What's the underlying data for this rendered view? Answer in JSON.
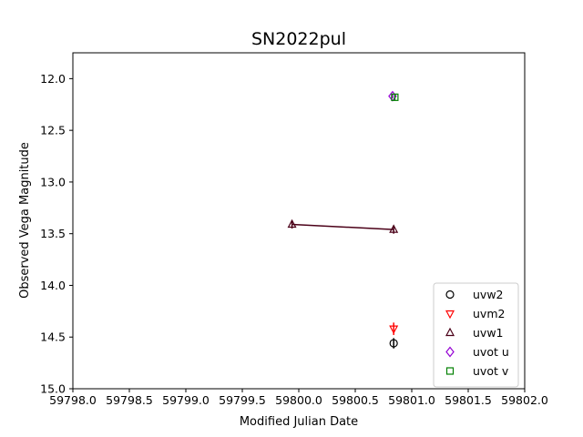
{
  "chart_data": {
    "type": "scatter",
    "title": "SN2022pul",
    "xlabel": "Modified Julian Date",
    "ylabel": "Observed Vega Magnitude",
    "xlim": [
      59798.0,
      59802.0
    ],
    "ylim": [
      15.0,
      11.75
    ],
    "y_inverted": true,
    "xticks": [
      59798.0,
      59798.5,
      59799.0,
      59799.5,
      59800.0,
      59800.5,
      59801.0,
      59801.5,
      59802.0
    ],
    "xtick_labels": [
      "59798.0",
      "59798.5",
      "59799.0",
      "59799.5",
      "59800.0",
      "59800.5",
      "59801.0",
      "59801.5",
      "59802.0"
    ],
    "yticks": [
      12.0,
      12.5,
      13.0,
      13.5,
      14.0,
      14.5,
      15.0
    ],
    "ytick_labels": [
      "12.0",
      "12.5",
      "13.0",
      "13.5",
      "14.0",
      "14.5",
      "15.0"
    ],
    "grid": false,
    "legend_position": "lower-right",
    "series": [
      {
        "name": "uvw2",
        "marker": "circle",
        "color": "#000000",
        "connect": false,
        "points": [
          {
            "x": 59800.84,
            "y": 14.56,
            "err": 0.05
          }
        ]
      },
      {
        "name": "uvm2",
        "marker": "triangle-down",
        "color": "#ff0000",
        "connect": false,
        "points": [
          {
            "x": 59800.84,
            "y": 14.42,
            "err": 0.06
          }
        ]
      },
      {
        "name": "uvw1",
        "marker": "triangle-up",
        "color": "#4b0018",
        "connect": true,
        "points": [
          {
            "x": 59799.94,
            "y": 13.41,
            "err": 0.04
          },
          {
            "x": 59800.84,
            "y": 13.46,
            "err": 0.04
          }
        ]
      },
      {
        "name": "uvot u",
        "marker": "diamond",
        "color": "#9400d3",
        "connect": false,
        "points": [
          {
            "x": 59800.83,
            "y": 12.17,
            "err": 0.02
          }
        ]
      },
      {
        "name": "uvot v",
        "marker": "square",
        "color": "#008000",
        "connect": false,
        "points": [
          {
            "x": 59800.85,
            "y": 12.18,
            "err": 0.03
          }
        ]
      }
    ]
  }
}
